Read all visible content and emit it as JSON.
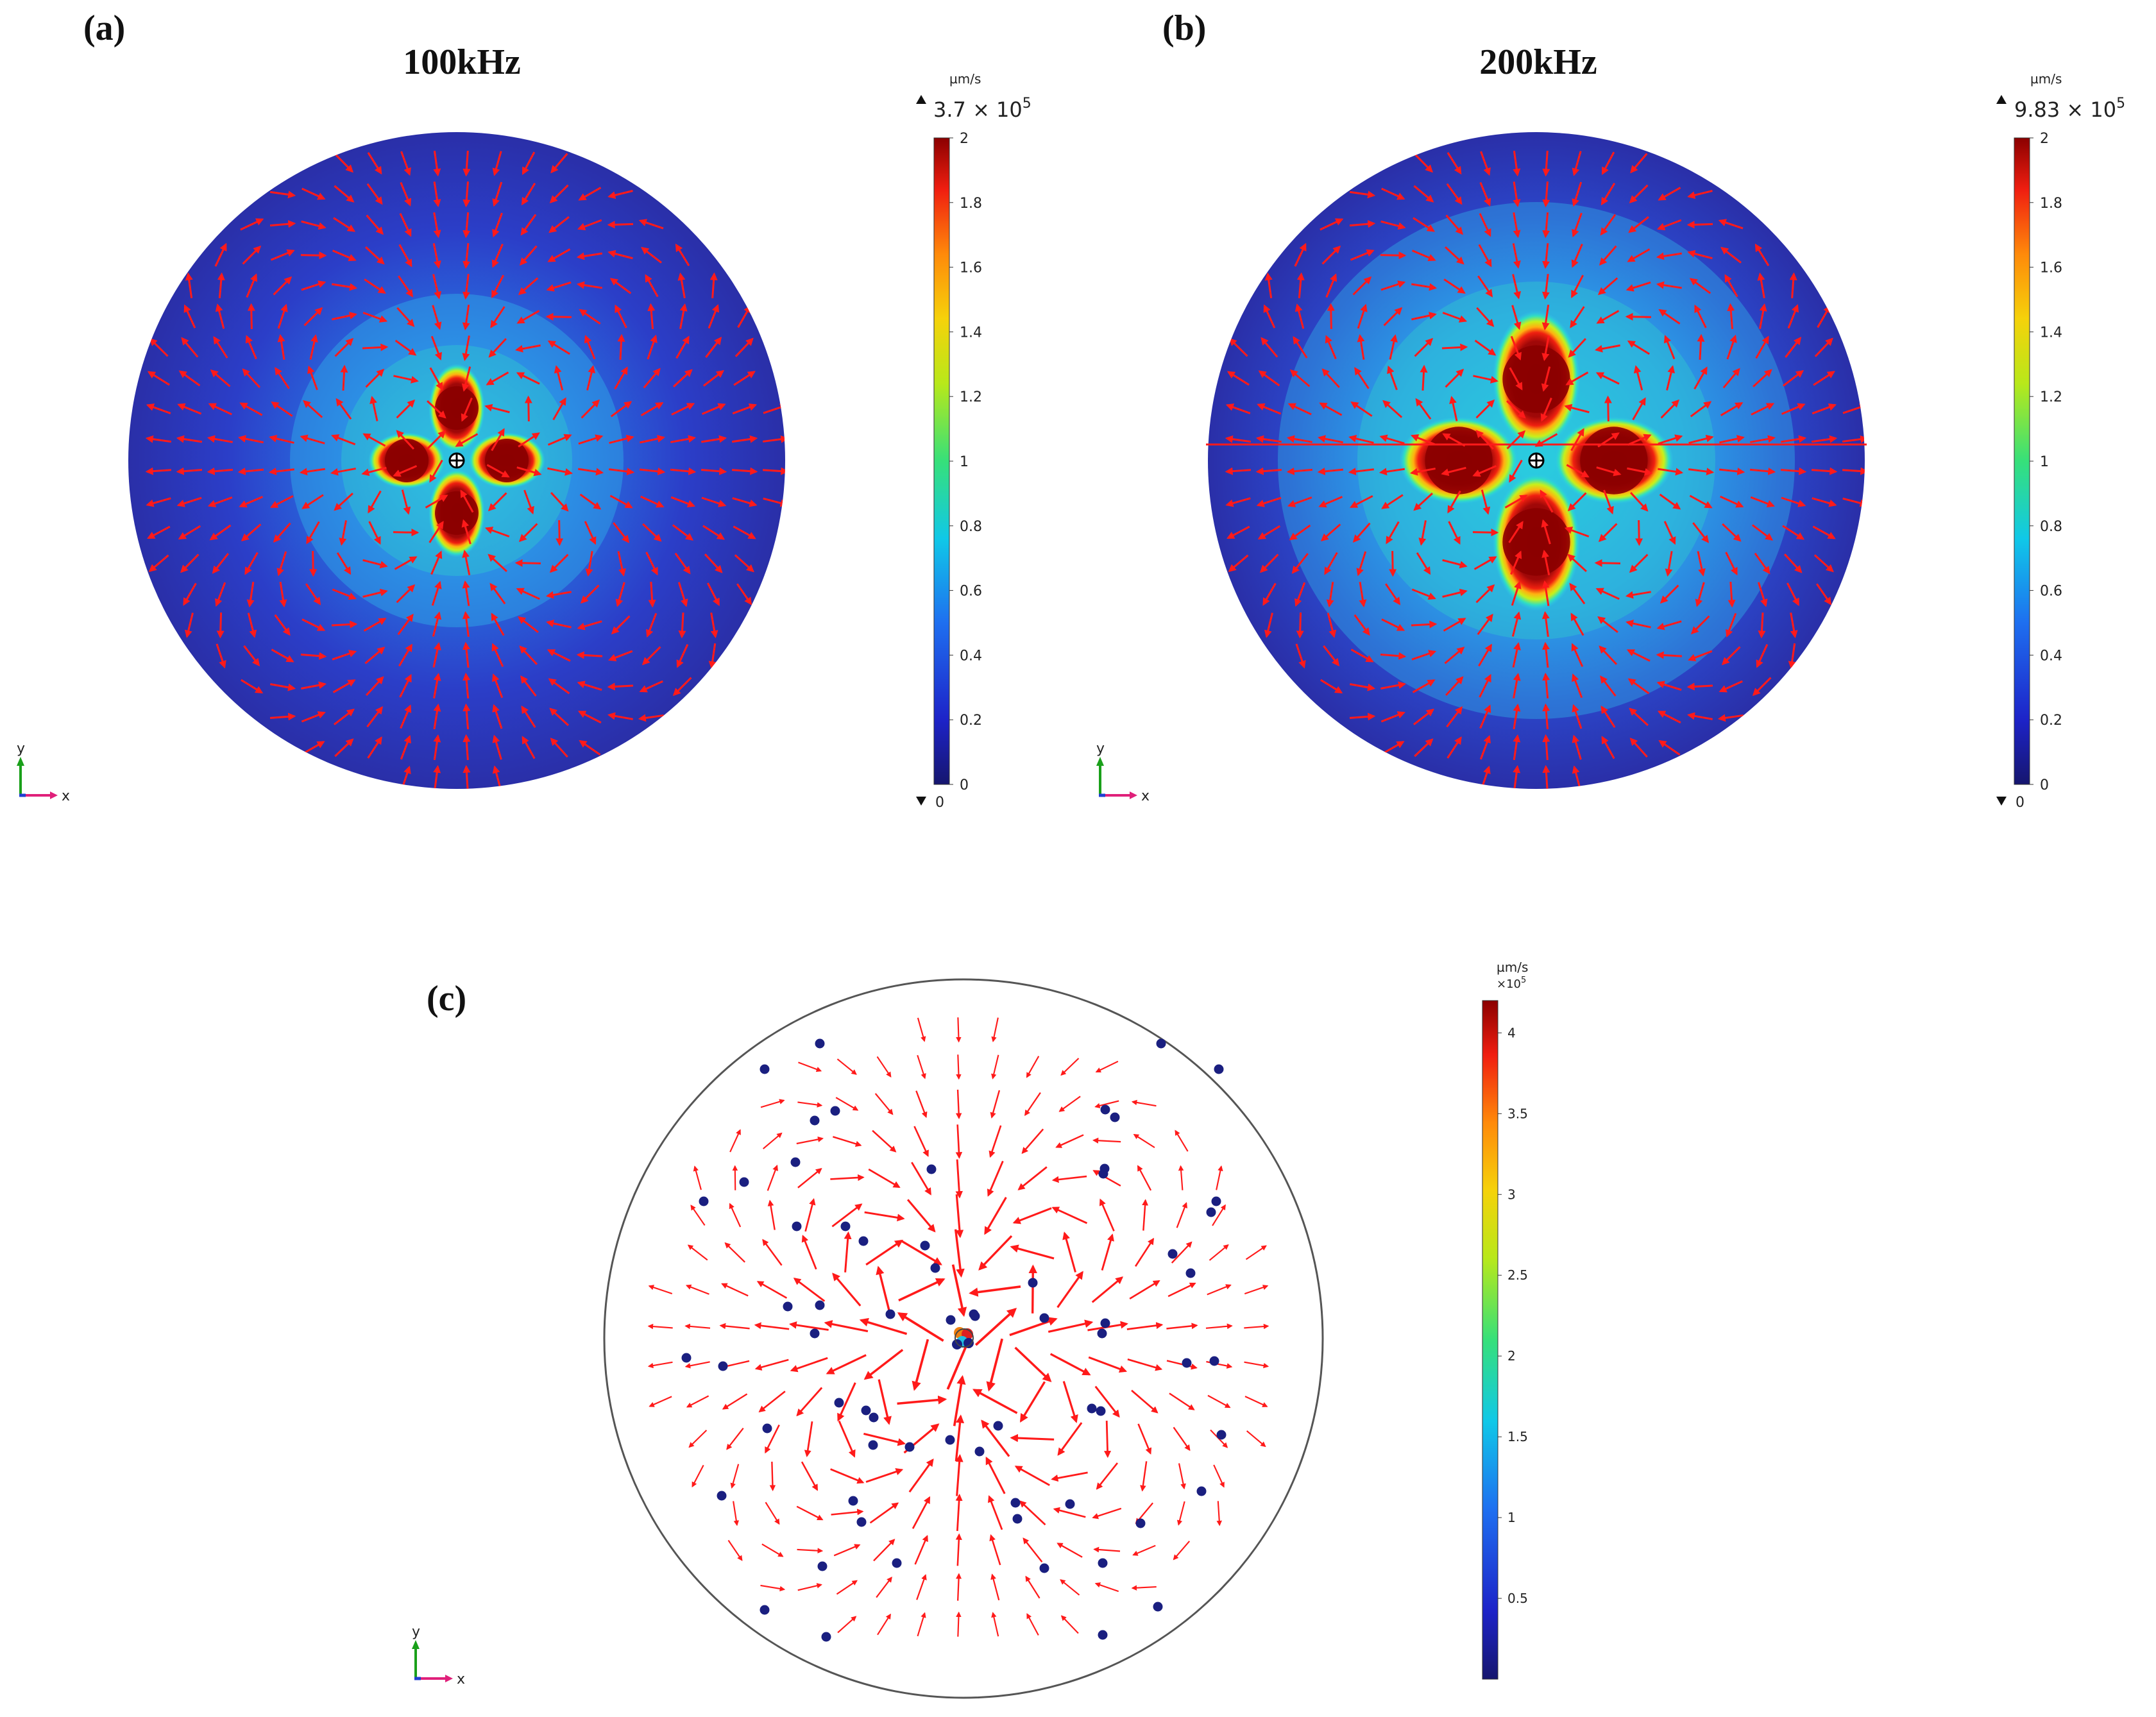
{
  "panels": [
    {
      "label": "(a)",
      "title": "100kHz",
      "unit": "µm/s",
      "max_label": "3.7 × 10",
      "max_exp": "5",
      "min_label": "0",
      "ticks": [
        "2",
        "1.8",
        "1.6",
        "1.4",
        "1.2",
        "1",
        "0.8",
        "0.6",
        "0.4",
        "0.2",
        "0"
      ],
      "lobe_scale": 1.0,
      "axis_x": "x",
      "axis_y": "y"
    },
    {
      "label": "(b)",
      "title": "200kHz",
      "unit": "µm/s",
      "max_label": "9.83 × 10",
      "max_exp": "5",
      "min_label": "0",
      "ticks": [
        "2",
        "1.8",
        "1.6",
        "1.4",
        "1.2",
        "1",
        "0.8",
        "0.6",
        "0.4",
        "0.2",
        "0"
      ],
      "lobe_scale": 1.55,
      "axis_x": "x",
      "axis_y": "y"
    }
  ],
  "panel_c": {
    "label": "(c)",
    "unit": "µm/s",
    "multiplier": "×10",
    "multiplier_exp": "5",
    "ticks": [
      "4",
      "3.5",
      "3",
      "2.5",
      "2",
      "1.5",
      "1",
      "0.5"
    ],
    "axis_x": "x",
    "axis_y": "y"
  },
  "colors": {
    "arrow": "#ff1a1a",
    "particle": "#1a1f80",
    "field_low": "#2a2fb0",
    "field_high": "#8b0000"
  }
}
